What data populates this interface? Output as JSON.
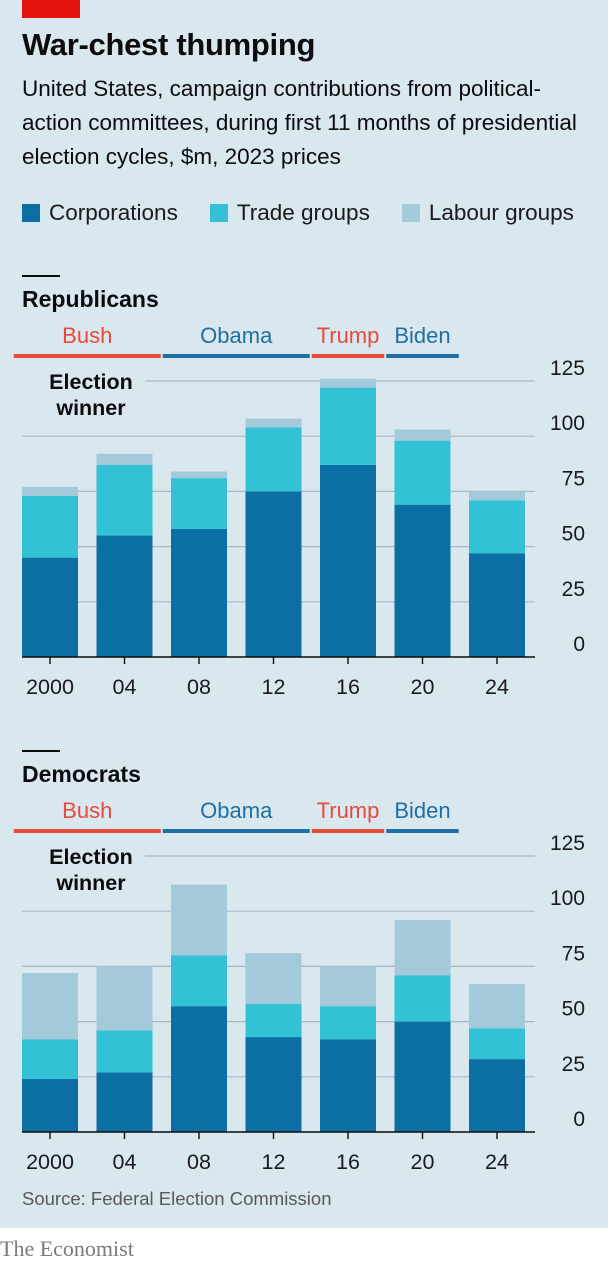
{
  "header": {
    "title": "War-chest thumping",
    "subtitle": "United States, campaign contributions from political-action committees, during first 11 months of presidential election cycles, $m, 2023 prices"
  },
  "legend": [
    {
      "label": "Corporations",
      "color": "#0b6fa4"
    },
    {
      "label": "Trade groups",
      "color": "#33c1d5"
    },
    {
      "label": "Labour groups",
      "color": "#a4c9da"
    }
  ],
  "winner_label": {
    "line1": "Election",
    "line2": "winner"
  },
  "colors": {
    "red": "#e64b3c",
    "blue": "#1f6fa5",
    "gridline": "#a9b9c2",
    "axis": "#0c0c0c",
    "card": "#d9e7ee"
  },
  "chart_data": [
    {
      "type": "bar",
      "stacked": true,
      "title": "Republicans",
      "categories": [
        "2000",
        "04",
        "08",
        "12",
        "16",
        "20",
        "24"
      ],
      "ylim": [
        0,
        125
      ],
      "yticks": [
        0,
        25,
        50,
        75,
        100,
        125
      ],
      "grid": true,
      "series": [
        {
          "name": "Corporations",
          "values": [
            45,
            55,
            58,
            75,
            87,
            69,
            47
          ]
        },
        {
          "name": "Trade groups",
          "values": [
            28,
            32,
            23,
            29,
            35,
            29,
            24
          ]
        },
        {
          "name": "Labour groups",
          "values": [
            4,
            5,
            3,
            4,
            4,
            5,
            4
          ]
        }
      ],
      "election_winners": [
        {
          "label": "Bush",
          "party": "Republican",
          "from": "2000",
          "to": "04"
        },
        {
          "label": "Obama",
          "party": "Democrat",
          "from": "08",
          "to": "12"
        },
        {
          "label": "Trump",
          "party": "Republican",
          "from": "16",
          "to": "16"
        },
        {
          "label": "Biden",
          "party": "Democrat",
          "from": "20",
          "to": "20"
        }
      ]
    },
    {
      "type": "bar",
      "stacked": true,
      "title": "Democrats",
      "categories": [
        "2000",
        "04",
        "08",
        "12",
        "16",
        "20",
        "24"
      ],
      "ylim": [
        0,
        125
      ],
      "yticks": [
        0,
        25,
        50,
        75,
        100,
        125
      ],
      "grid": true,
      "series": [
        {
          "name": "Corporations",
          "values": [
            24,
            27,
            57,
            43,
            42,
            50,
            33
          ]
        },
        {
          "name": "Trade groups",
          "values": [
            18,
            19,
            23,
            15,
            15,
            21,
            14
          ]
        },
        {
          "name": "Labour groups",
          "values": [
            30,
            29,
            32,
            23,
            18,
            25,
            20
          ]
        }
      ],
      "election_winners": [
        {
          "label": "Bush",
          "party": "Republican",
          "from": "2000",
          "to": "04"
        },
        {
          "label": "Obama",
          "party": "Democrat",
          "from": "08",
          "to": "12"
        },
        {
          "label": "Trump",
          "party": "Republican",
          "from": "16",
          "to": "16"
        },
        {
          "label": "Biden",
          "party": "Democrat",
          "from": "20",
          "to": "20"
        }
      ]
    }
  ],
  "footer": {
    "source": "Source: Federal Election Commission",
    "brand": "The Economist"
  }
}
